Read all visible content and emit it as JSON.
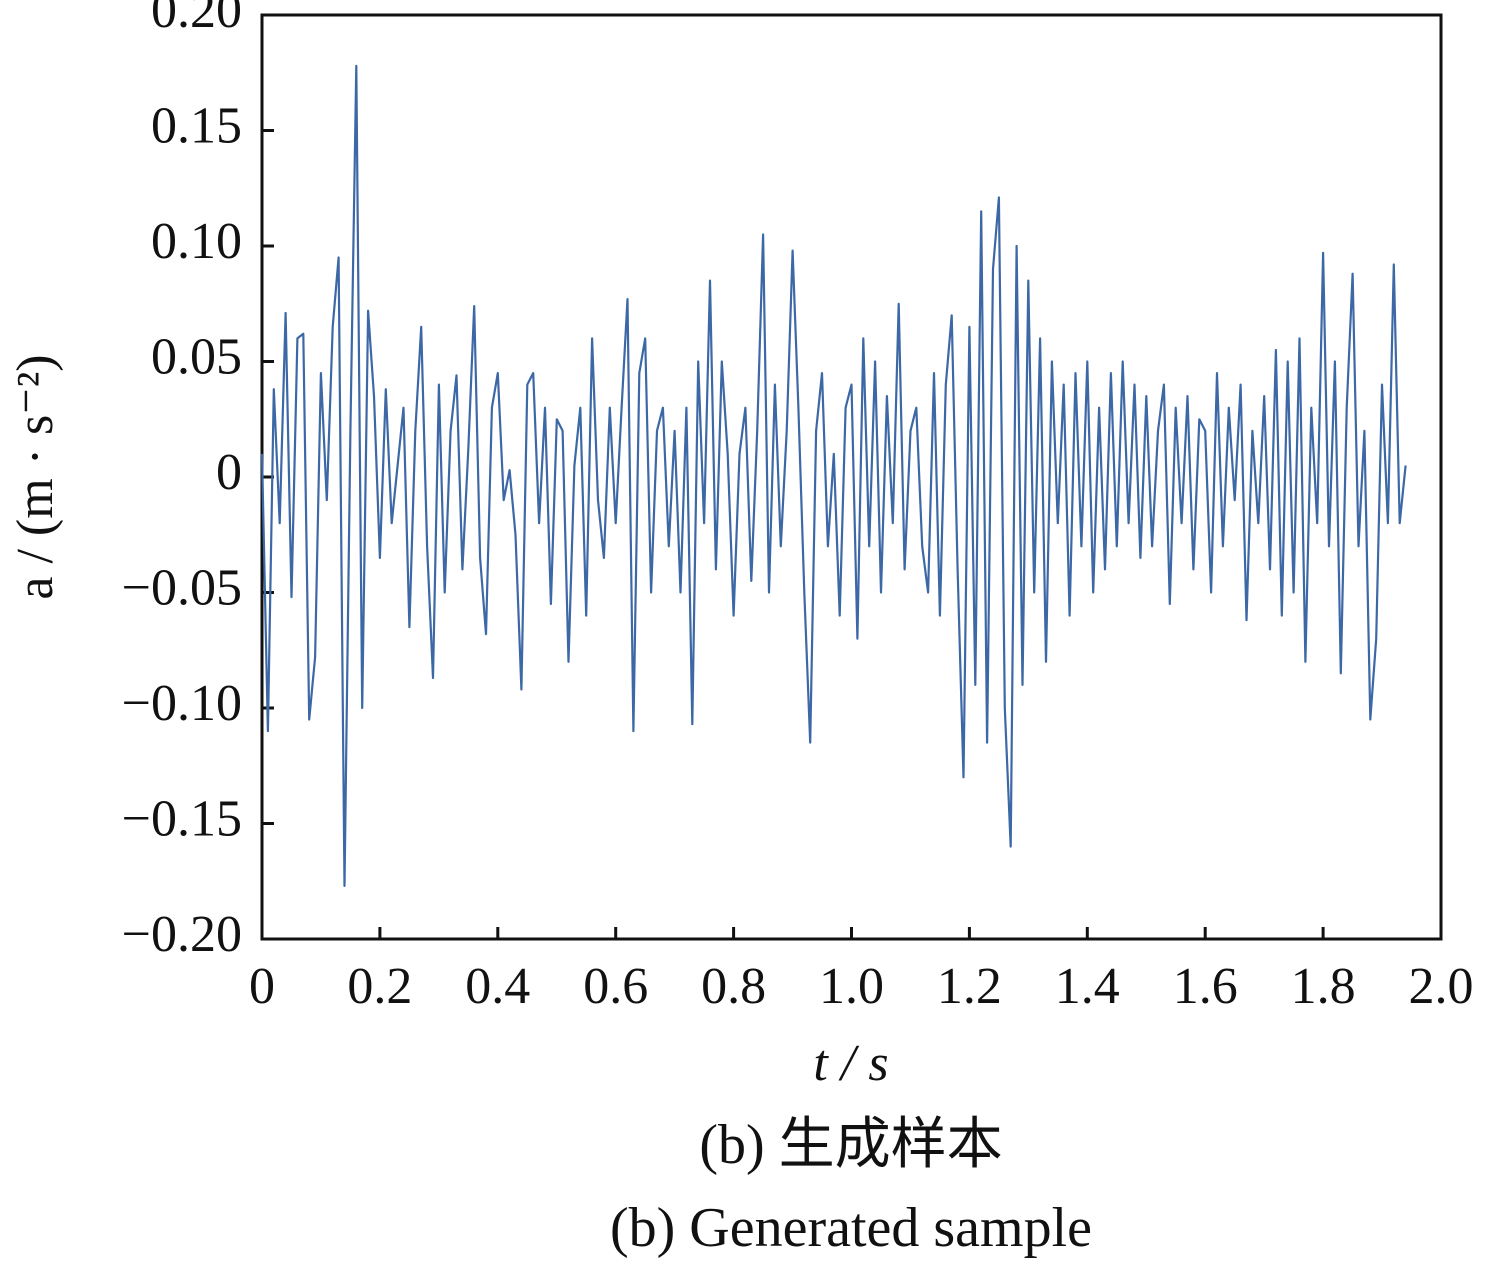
{
  "chart_data": {
    "type": "line",
    "x_label": "t / s",
    "y_label": "a / (m · s⁻²)",
    "captions": [
      "(b)  生成样本",
      "(b)  Generated sample"
    ],
    "xlim": [
      0,
      2.0
    ],
    "xticks": [
      0,
      0.2,
      0.4,
      0.6,
      0.8,
      {
        "value": 1.0,
        "label": "1.0"
      },
      1.2,
      1.4,
      1.6,
      1.8,
      {
        "value": 2.0,
        "label": "2.0"
      }
    ],
    "ylim": [
      -0.2,
      0.2
    ],
    "yticks": [
      {
        "value": -0.2,
        "label": "−0.20"
      },
      {
        "value": -0.15,
        "label": "−0.15"
      },
      {
        "value": -0.1,
        "label": "−0.10"
      },
      {
        "value": -0.05,
        "label": "−0.05"
      },
      0,
      {
        "value": 0.05,
        "label": "0.05"
      },
      {
        "value": 0.1,
        "label": "0.10"
      },
      {
        "value": 0.15,
        "label": "0.15"
      },
      {
        "value": 0.2,
        "label": "0.20"
      }
    ],
    "series": [
      {
        "color": "#3d68a6",
        "x": [
          0.0,
          0.01,
          0.02,
          0.03,
          0.04,
          0.05,
          0.06,
          0.07,
          0.08,
          0.09,
          0.1,
          0.11,
          0.12,
          0.13,
          0.14,
          0.15,
          0.16,
          0.17,
          0.18,
          0.19,
          0.2,
          0.21,
          0.22,
          0.23,
          0.24,
          0.25,
          0.26,
          0.27,
          0.28,
          0.29,
          0.3,
          0.31,
          0.32,
          0.33,
          0.34,
          0.35,
          0.36,
          0.37,
          0.38,
          0.39,
          0.4,
          0.41,
          0.42,
          0.43,
          0.44,
          0.45,
          0.46,
          0.47,
          0.48,
          0.49,
          0.5,
          0.51,
          0.52,
          0.53,
          0.54,
          0.55,
          0.56,
          0.57,
          0.58,
          0.59,
          0.6,
          0.61,
          0.62,
          0.63,
          0.64,
          0.65,
          0.66,
          0.67,
          0.68,
          0.69,
          0.7,
          0.71,
          0.72,
          0.73,
          0.74,
          0.75,
          0.76,
          0.77,
          0.78,
          0.79,
          0.8,
          0.81,
          0.82,
          0.83,
          0.84,
          0.85,
          0.86,
          0.87,
          0.88,
          0.89,
          0.9,
          0.91,
          0.92,
          0.93,
          0.94,
          0.95,
          0.96,
          0.97,
          0.98,
          0.99,
          1.0,
          1.01,
          1.02,
          1.03,
          1.04,
          1.05,
          1.06,
          1.07,
          1.08,
          1.09,
          1.1,
          1.11,
          1.12,
          1.13,
          1.14,
          1.15,
          1.16,
          1.17,
          1.18,
          1.19,
          1.2,
          1.21,
          1.22,
          1.23,
          1.24,
          1.25,
          1.26,
          1.27,
          1.28,
          1.29,
          1.3,
          1.31,
          1.32,
          1.33,
          1.34,
          1.35,
          1.36,
          1.37,
          1.38,
          1.39,
          1.4,
          1.41,
          1.42,
          1.43,
          1.44,
          1.45,
          1.46,
          1.47,
          1.48,
          1.49,
          1.5,
          1.51,
          1.52,
          1.53,
          1.54,
          1.55,
          1.56,
          1.57,
          1.58,
          1.59,
          1.6,
          1.61,
          1.62,
          1.63,
          1.64,
          1.65,
          1.66,
          1.67,
          1.68,
          1.69,
          1.7,
          1.71,
          1.72,
          1.73,
          1.74,
          1.75,
          1.76,
          1.77,
          1.78,
          1.79,
          1.8,
          1.81,
          1.82,
          1.83,
          1.84,
          1.85,
          1.86,
          1.87,
          1.88,
          1.89,
          1.9,
          1.91,
          1.92,
          1.93,
          1.94
        ],
        "values": [
          0.01,
          -0.11,
          0.038,
          -0.02,
          0.071,
          -0.052,
          0.06,
          0.062,
          -0.105,
          -0.078,
          0.045,
          -0.01,
          0.065,
          0.095,
          -0.177,
          0.02,
          0.178,
          -0.1,
          0.072,
          0.035,
          -0.035,
          0.038,
          -0.02,
          0.005,
          0.03,
          -0.065,
          0.02,
          0.065,
          -0.03,
          -0.087,
          0.04,
          -0.05,
          0.02,
          0.044,
          -0.04,
          0.012,
          0.074,
          -0.035,
          -0.068,
          0.03,
          0.045,
          -0.01,
          0.003,
          -0.025,
          -0.092,
          0.04,
          0.045,
          -0.02,
          0.03,
          -0.055,
          0.025,
          0.02,
          -0.08,
          0.005,
          0.03,
          -0.06,
          0.06,
          -0.01,
          -0.035,
          0.03,
          -0.02,
          0.03,
          0.077,
          -0.11,
          0.045,
          0.06,
          -0.05,
          0.02,
          0.03,
          -0.03,
          0.02,
          -0.05,
          0.03,
          -0.107,
          0.05,
          -0.02,
          0.085,
          -0.04,
          0.05,
          0.01,
          -0.06,
          0.01,
          0.03,
          -0.045,
          0.02,
          0.105,
          -0.05,
          0.04,
          -0.03,
          0.02,
          0.098,
          0.03,
          -0.05,
          -0.115,
          0.02,
          0.045,
          -0.03,
          0.01,
          -0.06,
          0.03,
          0.04,
          -0.07,
          0.06,
          -0.03,
          0.05,
          -0.05,
          0.035,
          -0.02,
          0.075,
          -0.04,
          0.02,
          0.03,
          -0.03,
          -0.05,
          0.045,
          -0.06,
          0.04,
          0.07,
          -0.04,
          -0.13,
          0.065,
          -0.09,
          0.115,
          -0.115,
          0.09,
          0.121,
          -0.1,
          -0.16,
          0.1,
          -0.09,
          0.085,
          -0.05,
          0.06,
          -0.08,
          0.05,
          -0.02,
          0.04,
          -0.06,
          0.045,
          -0.03,
          0.05,
          -0.05,
          0.03,
          -0.04,
          0.045,
          -0.03,
          0.05,
          -0.02,
          0.04,
          -0.035,
          0.035,
          -0.03,
          0.02,
          0.04,
          -0.055,
          0.03,
          -0.02,
          0.035,
          -0.04,
          0.025,
          0.02,
          -0.05,
          0.045,
          -0.03,
          0.03,
          -0.01,
          0.04,
          -0.062,
          0.02,
          -0.02,
          0.035,
          -0.04,
          0.055,
          -0.06,
          0.05,
          -0.05,
          0.06,
          -0.08,
          0.03,
          -0.02,
          0.097,
          -0.03,
          0.05,
          -0.085,
          0.03,
          0.088,
          -0.03,
          0.02,
          -0.105,
          -0.07,
          0.04,
          -0.02,
          0.092,
          -0.02,
          0.005
        ]
      }
    ]
  }
}
